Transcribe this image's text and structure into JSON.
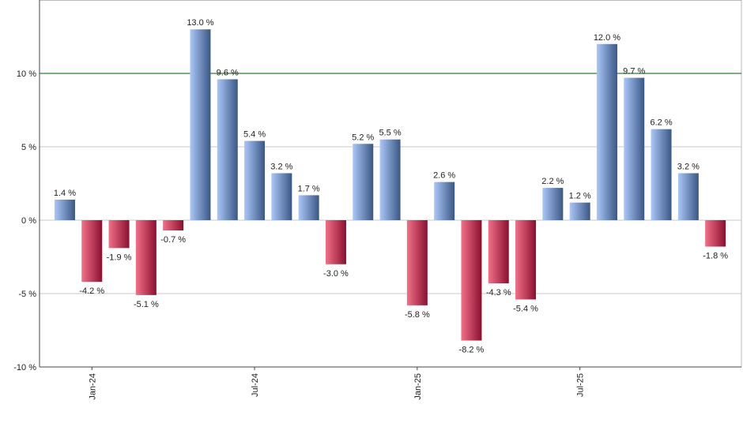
{
  "chart_data": {
    "type": "bar",
    "categories": [
      null,
      "Jan-24",
      null,
      null,
      null,
      null,
      null,
      "Jul-24",
      null,
      null,
      null,
      null,
      null,
      "Jan-25",
      null,
      null,
      null,
      null,
      null,
      "Jul-25",
      null,
      null,
      null,
      null,
      null
    ],
    "values": [
      1.4,
      -4.2,
      -1.9,
      -5.1,
      -0.7,
      13.0,
      9.6,
      5.4,
      3.2,
      1.7,
      -3.0,
      5.2,
      5.5,
      -5.8,
      2.6,
      -8.2,
      -4.3,
      -5.4,
      2.2,
      1.2,
      12.0,
      9.7,
      6.2,
      3.2,
      -1.8
    ],
    "value_labels": [
      "1.4 %",
      "-4.2 %",
      "-1.9 %",
      "-5.1 %",
      "-0.7 %",
      "13.0 %",
      "9.6 %",
      "5.4 %",
      "3.2 %",
      "1.7 %",
      "-3.0 %",
      "5.2 %",
      "5.5 %",
      "-5.8 %",
      "2.6 %",
      "-8.2 %",
      "-4.3 %",
      "-5.4 %",
      "2.2 %",
      "1.2 %",
      "12.0 %",
      "9.7 %",
      "6.2 %",
      "3.2 %",
      "-1.8 %"
    ],
    "positive_colors": [
      "#aac7f8",
      "#3a5784"
    ],
    "negative_colors": [
      "#f27088",
      "#8a1030"
    ],
    "ylim": [
      -10,
      15
    ],
    "yticks": [
      {
        "value": -10,
        "label": "-10 %"
      },
      {
        "value": -5,
        "label": "-5 %"
      },
      {
        "value": 0,
        "label": "0 %"
      },
      {
        "value": 5,
        "label": "5 %"
      },
      {
        "value": 10,
        "label": "10 %"
      }
    ],
    "reference_line": {
      "value": 10,
      "color": "#2f7d32"
    },
    "grid": true
  }
}
